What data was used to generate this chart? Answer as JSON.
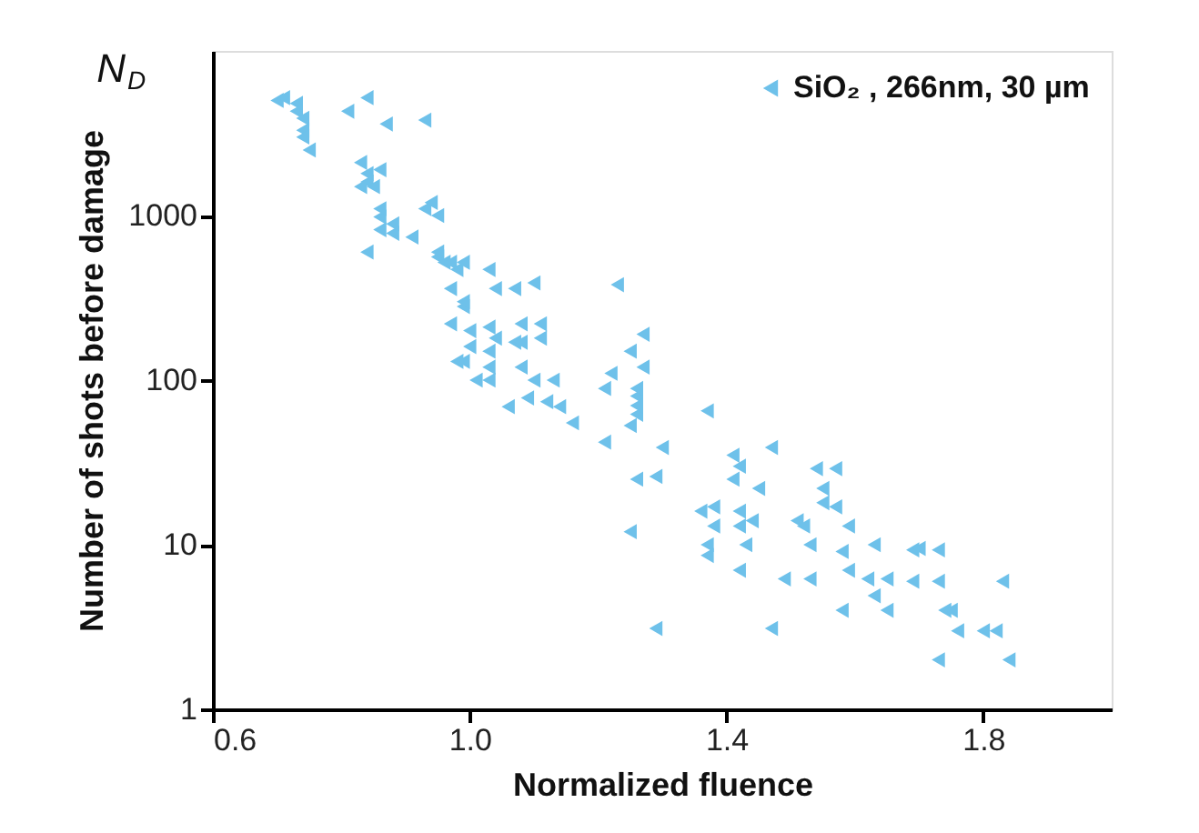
{
  "chart_data": {
    "type": "scatter",
    "xlabel": "Normalized fluence",
    "ylabel": "Number of shots before damage",
    "annotations": [
      "N$_{D}$"
    ],
    "xlim": [
      0.6,
      2.0
    ],
    "xticks": [
      0.6,
      {
        "value": 1,
        "label": "1.0"
      },
      1.4,
      1.8
    ],
    "ylim": [
      1,
      10000
    ],
    "yticks": [
      1,
      10,
      100,
      1000
    ],
    "log": "y",
    "grid": false,
    "legend": "top right",
    "marker": "triangle",
    "series": [
      {
        "name": "SiO₂ , 266nm, 30 µm",
        "color": "#6ec1ea",
        "x": [
          0.7,
          0.71,
          0.73,
          0.73,
          0.74,
          0.74,
          0.74,
          0.75,
          0.81,
          0.84,
          0.87,
          0.93,
          0.83,
          0.84,
          0.84,
          0.85,
          0.86,
          0.83,
          0.86,
          0.86,
          0.88,
          0.84,
          0.91,
          0.93,
          0.94,
          0.95,
          0.86,
          0.88,
          0.95,
          0.96,
          0.98,
          0.97,
          0.99,
          1.03,
          1.04,
          1.07,
          1.1,
          0.97,
          1.0,
          1.03,
          1.04,
          1.07,
          1.08,
          1.11,
          0.99,
          1.03,
          0.95,
          0.97,
          0.99,
          0.99,
          1.23,
          1.0,
          1.03,
          1.08,
          1.11,
          0.98,
          1.01,
          1.03,
          1.08,
          1.1,
          1.13,
          1.06,
          1.09,
          1.12,
          1.14,
          1.16,
          1.27,
          1.25,
          1.27,
          1.22,
          1.21,
          1.26,
          1.26,
          1.25,
          1.21,
          1.3,
          1.26,
          1.29,
          1.26,
          1.26,
          1.37,
          1.41,
          1.42,
          1.47,
          1.41,
          1.45,
          1.54,
          1.57,
          1.55,
          1.55,
          1.57,
          1.36,
          1.38,
          1.42,
          1.44,
          1.38,
          1.42,
          1.51,
          1.59,
          1.63,
          1.25,
          1.37,
          1.37,
          1.43,
          1.53,
          1.58,
          1.59,
          1.42,
          1.49,
          1.53,
          1.62,
          1.65,
          1.63,
          1.58,
          1.65,
          1.29,
          1.47,
          1.52,
          1.69,
          1.7,
          1.73,
          1.69,
          1.73,
          1.83,
          1.74,
          1.75,
          1.76,
          1.8,
          1.82,
          1.73,
          1.84
        ],
        "values": [
          5000,
          5200,
          4800,
          4300,
          3900,
          3300,
          3000,
          2500,
          4300,
          5200,
          3600,
          3800,
          2100,
          1800,
          1600,
          1500,
          1900,
          1500,
          980,
          820,
          780,
          600,
          740,
          1100,
          1200,
          1000,
          1100,
          890,
          560,
          520,
          470,
          360,
          280,
          470,
          360,
          360,
          390,
          220,
          200,
          210,
          180,
          170,
          220,
          220,
          130,
          120,
          600,
          520,
          520,
          300,
          380,
          160,
          150,
          170,
          180,
          130,
          100,
          100,
          120,
          100,
          100,
          69,
          78,
          74,
          69,
          55,
          190,
          150,
          120,
          110,
          89,
          80,
          62,
          53,
          42,
          39,
          25,
          26,
          89,
          70,
          65,
          35,
          30,
          39,
          25,
          22,
          29,
          29,
          22,
          18,
          17,
          16,
          17,
          16,
          14,
          13,
          13,
          14,
          13,
          10,
          12,
          10,
          8.6,
          10,
          10,
          9.1,
          7.0,
          7.0,
          6.2,
          6.2,
          6.2,
          6.2,
          4.9,
          4.0,
          4.0,
          3.1,
          3.1,
          13,
          9.3,
          9.5,
          9.3,
          6.0,
          6.0,
          6.0,
          4.0,
          4.0,
          3.0,
          3.0,
          3.0,
          2.0,
          2.0
        ]
      }
    ]
  }
}
